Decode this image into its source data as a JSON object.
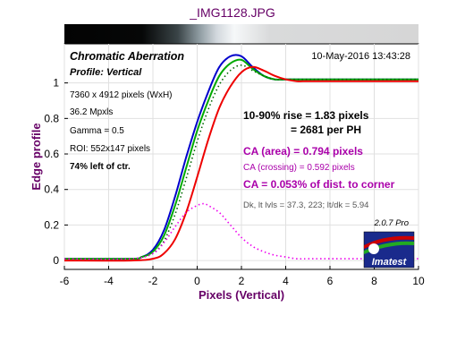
{
  "chart_data": {
    "type": "line",
    "title": "_IMG1128.JPG",
    "xlabel": "Pixels (Vertical)",
    "ylabel": "Edge profile",
    "xlim": [
      -6,
      10
    ],
    "ylim": [
      -0.05,
      1.22
    ],
    "xticks": [
      -6,
      -4,
      -2,
      0,
      2,
      4,
      6,
      8,
      10
    ],
    "yticks": [
      0,
      0.2,
      0.4,
      0.6,
      0.8,
      1
    ],
    "xtick_labels": [
      "-6",
      "-4",
      "-2",
      "0",
      "2",
      "4",
      "6",
      "8",
      "10"
    ],
    "ytick_labels": [
      "0",
      "0.2",
      "0.4",
      "0.6",
      "0.8",
      "1"
    ],
    "grid": true,
    "series": [
      {
        "color": "#0000cc",
        "style": "solid",
        "x": [
          -6,
          -3,
          -2.5,
          -2,
          -1.5,
          -1,
          -0.5,
          0,
          0.5,
          1,
          1.5,
          2,
          2.5,
          3,
          3.5,
          4,
          5,
          6,
          10
        ],
        "y": [
          0.01,
          0.01,
          0.02,
          0.06,
          0.17,
          0.36,
          0.58,
          0.78,
          0.95,
          1.09,
          1.15,
          1.15,
          1.09,
          1.04,
          1.02,
          1.02,
          1.02,
          1.02,
          1.02
        ]
      },
      {
        "color": "#00aa00",
        "style": "solid",
        "x": [
          -6,
          -3,
          -2.5,
          -2,
          -1.5,
          -1,
          -0.5,
          0,
          0.5,
          1,
          1.5,
          2,
          2.5,
          3,
          3.5,
          4,
          5,
          6,
          10
        ],
        "y": [
          0.01,
          0.01,
          0.02,
          0.05,
          0.14,
          0.31,
          0.52,
          0.73,
          0.9,
          1.04,
          1.11,
          1.13,
          1.08,
          1.04,
          1.02,
          1.02,
          1.02,
          1.02,
          1.02
        ]
      },
      {
        "color": "#006600",
        "style": "dotted",
        "x": [
          -6,
          -3,
          -2.5,
          -2,
          -1.5,
          -1,
          -0.5,
          0,
          0.5,
          1,
          1.5,
          2,
          2.5,
          3,
          3.5,
          4,
          5,
          6,
          10
        ],
        "y": [
          0.01,
          0.01,
          0.02,
          0.04,
          0.11,
          0.26,
          0.46,
          0.67,
          0.85,
          0.99,
          1.07,
          1.1,
          1.07,
          1.04,
          1.02,
          1.02,
          1.02,
          1.02,
          1.02
        ]
      },
      {
        "color": "#ee0000",
        "style": "solid",
        "x": [
          -6,
          -3,
          -2,
          -1.5,
          -1,
          -0.5,
          0,
          0.5,
          1,
          1.5,
          2,
          2.5,
          3,
          3.5,
          4,
          4.5,
          5,
          6,
          10
        ],
        "y": [
          0.0,
          0.0,
          0.01,
          0.04,
          0.12,
          0.27,
          0.47,
          0.68,
          0.86,
          0.98,
          1.06,
          1.09,
          1.07,
          1.04,
          1.02,
          1.01,
          1.01,
          1.01,
          1.01
        ]
      },
      {
        "color": "#ee00ee",
        "style": "dotted",
        "x": [
          -6,
          -3,
          -2,
          -1.5,
          -1,
          -0.5,
          0,
          0.3,
          0.5,
          1,
          1.5,
          2,
          2.5,
          3,
          3.5,
          4,
          4.5,
          5,
          6,
          10
        ],
        "y": [
          0.01,
          0.01,
          0.04,
          0.1,
          0.19,
          0.27,
          0.31,
          0.32,
          0.31,
          0.27,
          0.2,
          0.13,
          0.08,
          0.05,
          0.03,
          0.02,
          0.01,
          0.01,
          0.01,
          0.01
        ]
      }
    ],
    "annotations": {
      "chart_title": "Chromatic Aberration",
      "profile": "Profile: Vertical",
      "date": "10-May-2016 13:43:28",
      "info_lines": [
        "7360 x 4912 pixels (WxH)",
        "36.2 Mpxls",
        "Gamma = 0.5",
        "ROI: 552x147 pixels",
        "74% left of ctr."
      ],
      "rise": "10-90% rise = 1.83 pixels",
      "per_ph": "= 2681 per PH",
      "ca_area": "CA (area) = 0.794 pixels",
      "ca_crossing": "CA (crossing) = 0.592 pixels",
      "ca_dist": "CA = 0.053% of dist. to corner",
      "dk_line": "Dk, lt lvls = 37.3, 223;  lt/dk = 5.94",
      "version": "2.0.7  Pro",
      "logo_text": "Imatest"
    }
  }
}
